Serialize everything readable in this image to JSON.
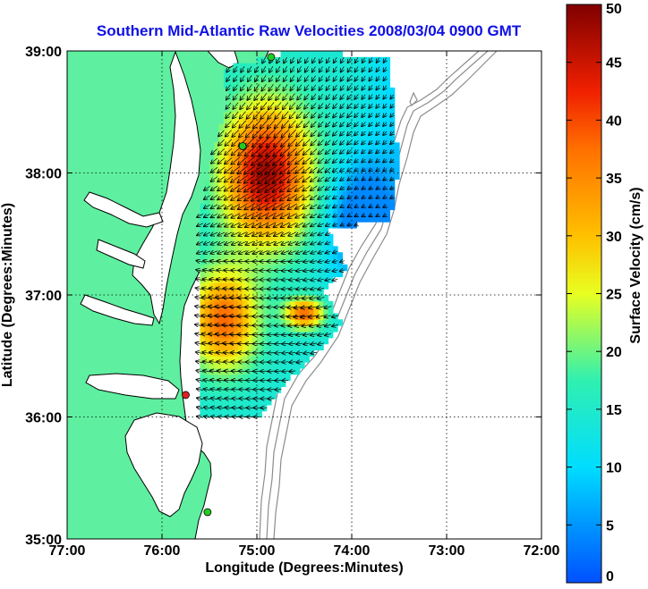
{
  "chart_data": {
    "type": "heatmap",
    "title": "Southern Mid-Atlantic Raw Velocities 2008/03/04 0900 GMT",
    "xlabel": "Longitude (Degrees:Minutes)",
    "ylabel": "Latitude (Degrees:Minutes)",
    "x_ticks": [
      "77:00",
      "76:00",
      "75:00",
      "74:00",
      "73:00",
      "72:00"
    ],
    "y_ticks": [
      "39:00",
      "38:00",
      "37:00",
      "36:00",
      "35:00"
    ],
    "xlim": [
      -77,
      -72
    ],
    "ylim": [
      35,
      39
    ],
    "grid": true,
    "colorbar": {
      "label": "Surface Velocity (cm/s)",
      "range": [
        0,
        50
      ],
      "ticks": [
        "0",
        "5",
        "10",
        "15",
        "20",
        "25",
        "30",
        "35",
        "40",
        "45",
        "50"
      ]
    },
    "colors": {
      "land": "#5ef0a0",
      "water": "#ffffff",
      "coast": "#000000",
      "bathymetry": "#8c8c8c",
      "site_active": "#22cc22",
      "site_inactive": "#e02020",
      "title": "#1010e6"
    },
    "site_markers": [
      {
        "lon": -74.85,
        "lat": 38.95,
        "status": "active"
      },
      {
        "lon": -75.15,
        "lat": 38.22,
        "status": "active"
      },
      {
        "lon": -75.75,
        "lat": 36.18,
        "status": "inactive"
      },
      {
        "lon": -75.52,
        "lat": 35.22,
        "status": "active"
      }
    ]
  }
}
